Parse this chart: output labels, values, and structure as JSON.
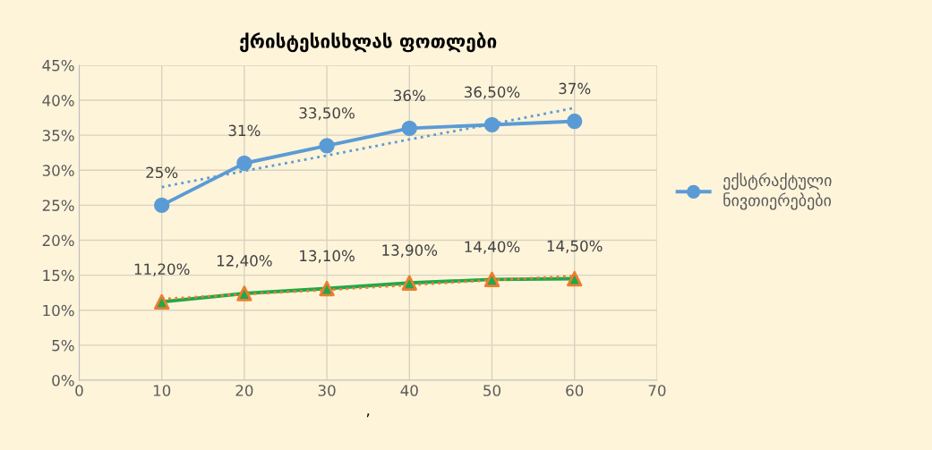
{
  "chart_data": {
    "type": "line",
    "title": "ქრისტესისხლას ფოთლები",
    "xlabel": ",",
    "x": [
      10,
      20,
      30,
      40,
      50,
      60
    ],
    "series": [
      {
        "name": "ექსტრაქტული\nნივთიერებები",
        "color": "#5b9bd5",
        "marker": "circle",
        "values": [
          25,
          31,
          33.5,
          36,
          36.5,
          37
        ],
        "value_labels": [
          "25%",
          "31%",
          "33,50%",
          "36%",
          "36,50%",
          "37%"
        ]
      },
      {
        "color": "#21a84a",
        "colors": [
          "#ed7d31",
          "#ed7d31",
          "#ed7d31",
          "#ed7d31",
          "#ed7d31",
          "#ed7d31"
        ],
        "marker": "triangle",
        "values": [
          11.2,
          12.4,
          13.1,
          13.9,
          14.4,
          14.5
        ],
        "value_labels": [
          "11,20%",
          "12,40%",
          "13,10%",
          "13,90%",
          "14,40%",
          "14,50%"
        ]
      },
      {
        "type": "line",
        "color": "#5b9bd5",
        "line_style": "dotted",
        "marker": "none",
        "values": [
          27.6,
          29.9,
          32.1,
          34.4,
          36.6,
          38.9
        ]
      },
      {
        "type": "line",
        "color": "#ed7d31",
        "line_style": "dotted",
        "marker": "none",
        "values": [
          11.6,
          12.3,
          12.9,
          13.6,
          14.3,
          14.9
        ]
      }
    ],
    "xlim": [
      0,
      70
    ],
    "xticks": [
      0,
      10,
      20,
      30,
      40,
      50,
      60,
      70
    ],
    "ylim": [
      0,
      45
    ],
    "yticks": [
      {
        "value": 0,
        "label": "0%"
      },
      {
        "value": 5,
        "label": "5%"
      },
      {
        "value": 10,
        "label": "10%"
      },
      {
        "value": 15,
        "label": "15%"
      },
      {
        "value": 20,
        "label": "20%"
      },
      {
        "value": 25,
        "label": "25%"
      },
      {
        "value": 30,
        "label": "30%"
      },
      {
        "value": 35,
        "label": "35%"
      },
      {
        "value": 40,
        "label": "40%"
      },
      {
        "value": 45,
        "label": "45%"
      }
    ],
    "grid": true,
    "legend": "right"
  }
}
